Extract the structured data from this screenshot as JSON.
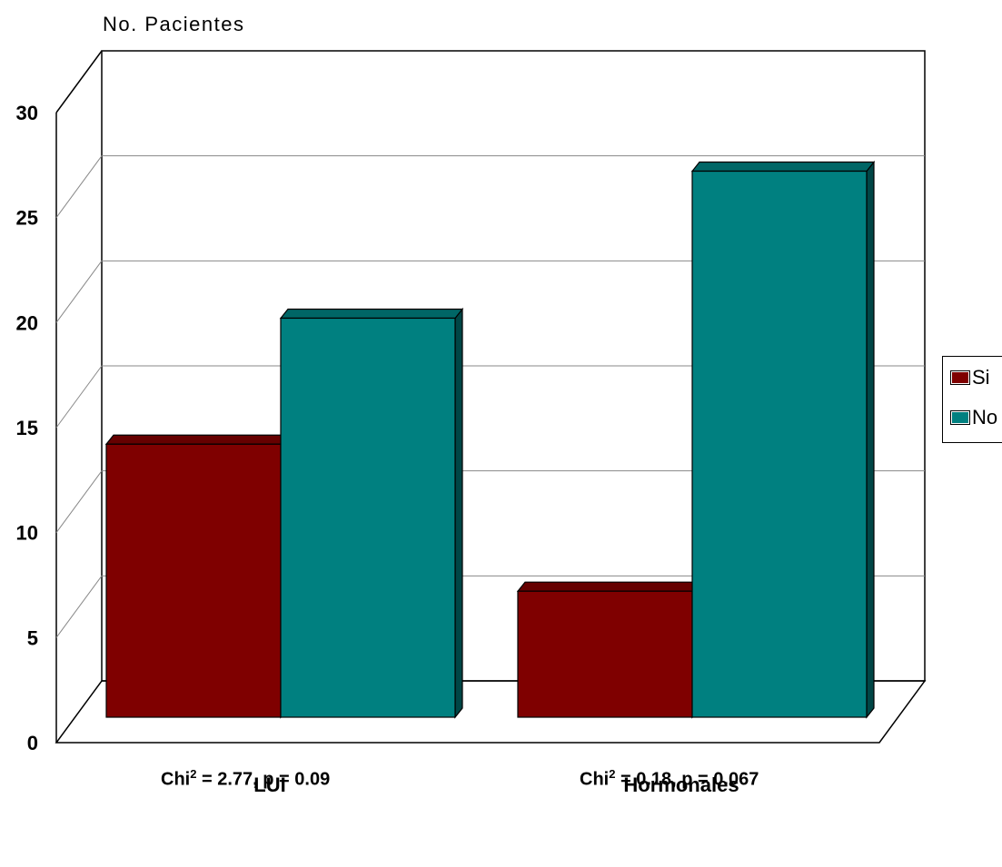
{
  "chart_data": {
    "type": "bar",
    "ylabel": "No. Pacientes",
    "categories": [
      "LUI",
      "Hormonales"
    ],
    "series": [
      {
        "name": "Si",
        "values": [
          13,
          6
        ],
        "color": "#7f0000"
      },
      {
        "name": "No",
        "values": [
          19,
          26
        ],
        "color": "#008080"
      }
    ],
    "ylim": [
      0,
      30
    ],
    "yticks": [
      0,
      5,
      10,
      15,
      20,
      25,
      30
    ],
    "grid": true,
    "legend": "right",
    "three_d": true
  },
  "stats": [
    {
      "prefix": "Chi",
      "sup": "2",
      "suffix": " = 2.77, p = 0.09"
    },
    {
      "prefix": "Chi",
      "sup": "2",
      "suffix": " = 0.18, p = 0.067"
    }
  ]
}
